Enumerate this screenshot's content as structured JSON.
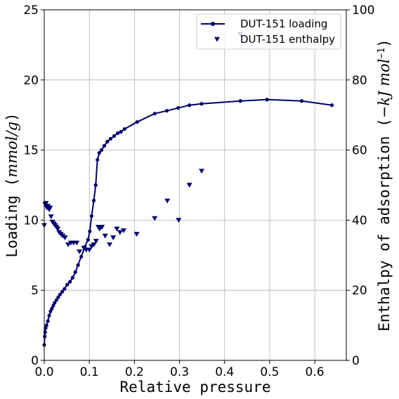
{
  "chart_data": {
    "type": "line",
    "xlabel": "Relative pressure",
    "ylabel_left_prefix": "Loading (",
    "ylabel_left_unit": "mmol/g",
    "ylabel_left_suffix": ")",
    "ylabel_right_prefix": "Enthalpy of adsorption (",
    "ylabel_right_unit": "−kJ mol",
    "ylabel_right_sup": "−1",
    "ylabel_right_suffix": ")",
    "xlim": [
      0,
      0.67
    ],
    "ylim_left": [
      0,
      25
    ],
    "ylim_right": [
      0,
      100
    ],
    "x_ticks": [
      0,
      0.1,
      0.2,
      0.3,
      0.4,
      0.5,
      0.6
    ],
    "x_tick_labels": [
      "0.0",
      "0.1",
      "0.2",
      "0.3",
      "0.4",
      "0.5",
      "0.6"
    ],
    "y_left_ticks": [
      0,
      5,
      10,
      15,
      20,
      25
    ],
    "y_left_tick_labels": [
      "0",
      "5",
      "10",
      "15",
      "20",
      "25"
    ],
    "y_right_ticks": [
      0,
      20,
      40,
      60,
      80,
      100
    ],
    "y_right_tick_labels": [
      "0",
      "20",
      "40",
      "60",
      "80",
      "100"
    ],
    "grid": true,
    "legend_position": "top-right",
    "colors": {
      "series": "#00006e",
      "grid": "#b0b0b0"
    },
    "series": [
      {
        "name": "DUT-151 loading",
        "axis": "left",
        "style": "line-dot",
        "x": [
          0.0,
          0.001,
          0.002,
          0.003,
          0.005,
          0.008,
          0.011,
          0.014,
          0.017,
          0.02,
          0.023,
          0.027,
          0.031,
          0.035,
          0.04,
          0.045,
          0.051,
          0.057,
          0.063,
          0.069,
          0.075,
          0.082,
          0.09,
          0.097,
          0.101,
          0.105,
          0.11,
          0.114,
          0.118,
          0.122,
          0.127,
          0.133,
          0.14,
          0.147,
          0.155,
          0.163,
          0.17,
          0.178,
          0.206,
          0.245,
          0.272,
          0.297,
          0.322,
          0.349,
          0.435,
          0.494,
          0.571,
          0.638
        ],
        "y": [
          1.1,
          1.7,
          2.0,
          2.3,
          2.5,
          2.8,
          3.2,
          3.5,
          3.7,
          3.9,
          4.1,
          4.3,
          4.5,
          4.7,
          4.9,
          5.1,
          5.4,
          5.6,
          5.9,
          6.3,
          6.8,
          7.4,
          8.1,
          8.6,
          9.2,
          10.3,
          11.4,
          12.5,
          14.3,
          14.8,
          15.0,
          15.3,
          15.6,
          15.8,
          16.0,
          16.2,
          16.3,
          16.5,
          17.0,
          17.6,
          17.8,
          18.0,
          18.2,
          18.3,
          18.5,
          18.6,
          18.5,
          18.2
        ]
      },
      {
        "name": "DUT-151 enthalpy",
        "axis": "right",
        "style": "triangle-down",
        "x": [
          0.0,
          0.002,
          0.004,
          0.006,
          0.008,
          0.011,
          0.013,
          0.015,
          0.018,
          0.021,
          0.024,
          0.027,
          0.03,
          0.033,
          0.037,
          0.041,
          0.046,
          0.053,
          0.059,
          0.065,
          0.072,
          0.078,
          0.088,
          0.093,
          0.1,
          0.105,
          0.11,
          0.115,
          0.12,
          0.123,
          0.128,
          0.135,
          0.145,
          0.153,
          0.161,
          0.168,
          0.176,
          0.205,
          0.245,
          0.273,
          0.298,
          0.322,
          0.349,
          0.435
        ],
        "y": [
          38.5,
          44.5,
          44.8,
          43.5,
          44.0,
          43.0,
          43.5,
          41.0,
          39.5,
          39.0,
          38.5,
          38.0,
          37.5,
          36.5,
          36.0,
          35.5,
          35.0,
          33.0,
          33.5,
          33.5,
          33.5,
          31.0,
          32.0,
          31.5,
          31.5,
          32.5,
          33.0,
          34.0,
          38.0,
          37.5,
          38.0,
          35.5,
          33.0,
          35.0,
          37.5,
          36.5,
          37.0,
          36.0,
          40.5,
          45.5,
          40.0,
          50.0,
          54.0,
          93.0
        ]
      }
    ]
  }
}
